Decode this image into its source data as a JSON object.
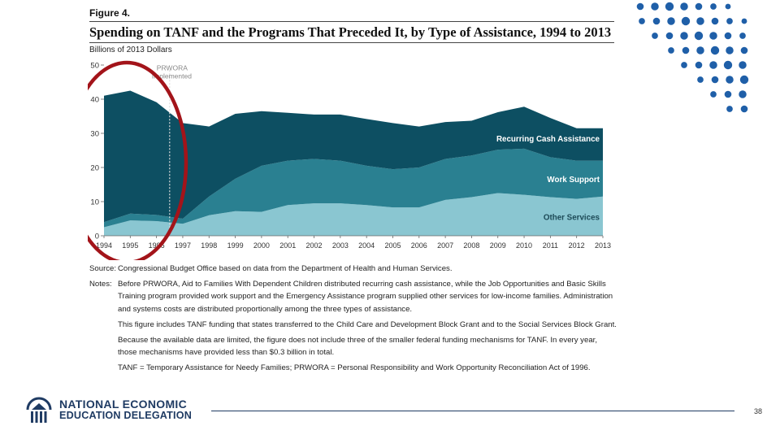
{
  "figure": {
    "label": "Figure 4.",
    "title": "Spending on TANF and the Programs That Preceded It, by Type of Assistance, 1994 to 2013",
    "units": "Billions of 2013 Dollars"
  },
  "chart_data": {
    "type": "area",
    "stacked": true,
    "x": [
      1994,
      1995,
      1996,
      1997,
      1998,
      1999,
      2000,
      2001,
      2002,
      2003,
      2004,
      2005,
      2006,
      2007,
      2008,
      2009,
      2010,
      2011,
      2012,
      2013
    ],
    "xtick_labels": [
      "1994",
      "1995",
      "1996",
      "1997",
      "1998",
      "1999",
      "2000",
      "2001",
      "2002",
      "2003",
      "2004",
      "2005",
      "2006",
      "2007",
      "2008",
      "2009",
      "2010",
      "2011",
      "2012",
      "2013"
    ],
    "ylim": [
      0,
      50
    ],
    "yticks": [
      0,
      10,
      20,
      30,
      40,
      50
    ],
    "ytick_labels": [
      "0",
      "10",
      "20",
      "30",
      "40",
      "50"
    ],
    "series": [
      {
        "name": "Other Services",
        "color": "#8ac6d1",
        "values": [
          2.5,
          4.5,
          4.3,
          3.5,
          6.0,
          7.2,
          7.0,
          9.0,
          9.5,
          9.5,
          9.0,
          8.3,
          8.3,
          10.5,
          11.3,
          12.5,
          12.0,
          11.3,
          10.8,
          11.5
        ]
      },
      {
        "name": "Work Support",
        "color": "#2a8091",
        "values": [
          1.5,
          2.0,
          1.8,
          1.5,
          5.5,
          9.5,
          13.5,
          13.0,
          13.0,
          12.5,
          11.5,
          11.2,
          11.7,
          12.0,
          12.2,
          12.7,
          13.5,
          11.7,
          11.2,
          10.5
        ]
      },
      {
        "name": "Recurring Cash Assistance",
        "color": "#0d4f62",
        "values": [
          37.0,
          36.0,
          33.0,
          28.0,
          20.5,
          19.0,
          16.0,
          14.0,
          13.0,
          13.5,
          13.7,
          13.5,
          12.0,
          10.8,
          10.2,
          11.0,
          12.3,
          11.5,
          9.5,
          9.5
        ]
      }
    ],
    "annotation": {
      "text_line1": "PRWORA",
      "text_line2": "Implemented",
      "x": 1996.5
    },
    "highlight": "red-ellipse around 1994-1996"
  },
  "notes": {
    "source_label": "Source:",
    "source_text": "Congressional Budget Office based on data from the Department of Health and Human Services.",
    "notes_label": "Notes:",
    "note1": "Before PRWORA, Aid to Families With Dependent Children distributed recurring cash assistance, while the Job Opportunities and Basic Skills Training program provided work support and the Emergency Assistance program supplied other services for low-income families. Administration and systems costs are distributed proportionally among the three types of assistance.",
    "note2": "This figure includes TANF funding that states transferred to the Child Care and Development Block Grant and to the Social Services Block Grant.",
    "note3": "Because the available data are limited, the figure does not include three of the smaller federal funding mechanisms for TANF. In every year, those mechanisms have provided less than $0.3 billion in total.",
    "note4": "TANF = Temporary Assistance for Needy Families; PRWORA = Personal Responsibility and Work Opportunity Reconciliation Act of 1996."
  },
  "footer": {
    "org_line1": "NATIONAL ECONOMIC",
    "org_line2": "EDUCATION DELEGATION",
    "page_number": "38"
  },
  "colors": {
    "brand_navy": "#1f3b63",
    "dot_blue": "#1f5fa8",
    "highlight_red": "#a3141a"
  }
}
